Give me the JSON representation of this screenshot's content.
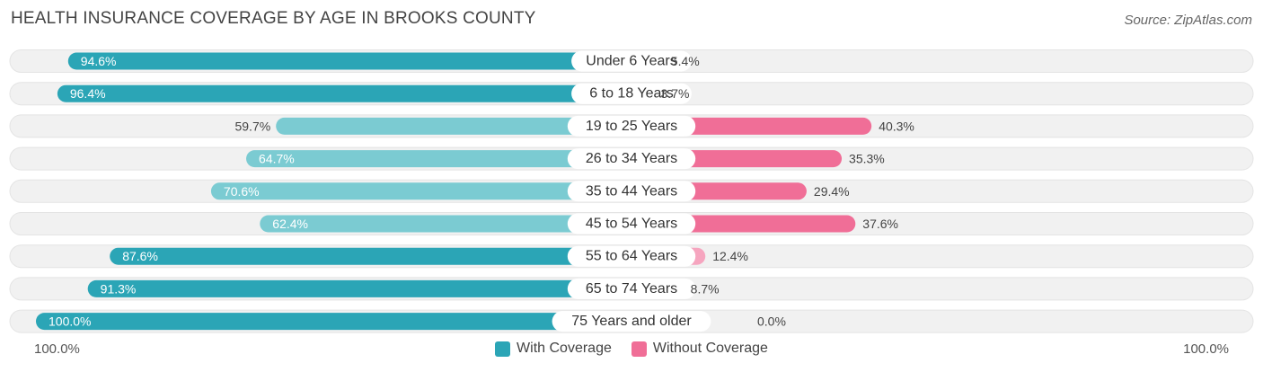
{
  "header": {
    "title": "HEALTH INSURANCE COVERAGE BY AGE IN BROOKS COUNTY",
    "source": "Source: ZipAtlas.com"
  },
  "colors": {
    "with_dark": "#2ba5b6",
    "with_light": "#7bcbd2",
    "without_dark": "#f06e97",
    "without_light": "#f6a5bf",
    "track": "#f1f1f1"
  },
  "chart_data": {
    "type": "bar",
    "orientation": "diverging-horizontal",
    "title": "HEALTH INSURANCE COVERAGE BY AGE IN BROOKS COUNTY",
    "categories": [
      "Under 6 Years",
      "6 to 18 Years",
      "19 to 25 Years",
      "26 to 34 Years",
      "35 to 44 Years",
      "45 to 54 Years",
      "55 to 64 Years",
      "65 to 74 Years",
      "75 Years and older"
    ],
    "series": [
      {
        "name": "With Coverage",
        "values": [
          94.6,
          96.4,
          59.7,
          64.7,
          70.6,
          62.4,
          87.6,
          91.3,
          100.0
        ],
        "labels": [
          "94.6%",
          "96.4%",
          "59.7%",
          "64.7%",
          "70.6%",
          "62.4%",
          "87.6%",
          "91.3%",
          "100.0%"
        ]
      },
      {
        "name": "Without Coverage",
        "values": [
          5.4,
          3.7,
          40.3,
          35.3,
          29.4,
          37.6,
          12.4,
          8.7,
          0.0
        ],
        "labels": [
          "5.4%",
          "3.7%",
          "40.3%",
          "35.3%",
          "29.4%",
          "37.6%",
          "12.4%",
          "8.7%",
          "0.0%"
        ]
      }
    ],
    "xlim": [
      0,
      100
    ],
    "axis_left_label": "100.0%",
    "axis_right_label": "100.0%",
    "legend": [
      "With Coverage",
      "Without Coverage"
    ],
    "legend_position": "bottom-center"
  }
}
